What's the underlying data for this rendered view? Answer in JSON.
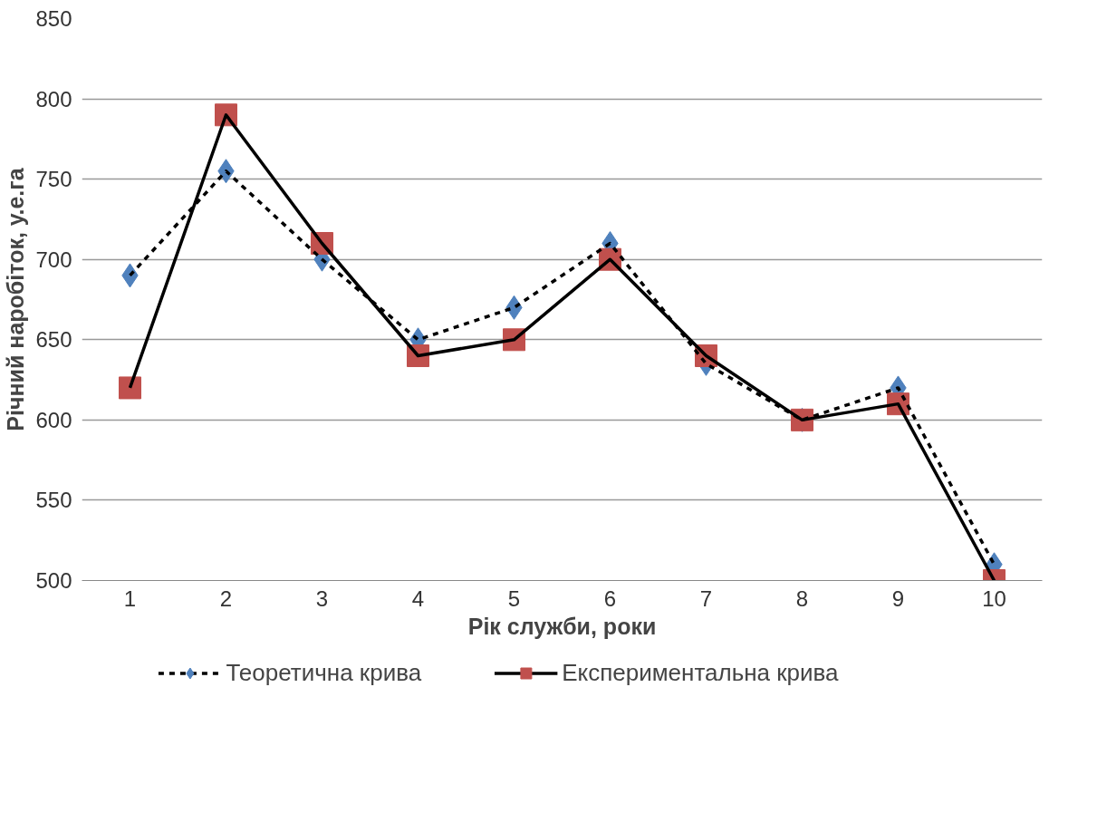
{
  "chart_data": {
    "type": "line",
    "xlabel": "Рік служби, роки",
    "ylabel": "Річний наробіток, у.е.га",
    "categories": [
      "1",
      "2",
      "3",
      "4",
      "5",
      "6",
      "7",
      "8",
      "9",
      "10"
    ],
    "series": [
      {
        "name": "Теоретична крива",
        "color": "#4f81bd",
        "marker": "diamond",
        "line_style": "dashed",
        "values": [
          690,
          755,
          700,
          650,
          670,
          710,
          635,
          600,
          620,
          510
        ]
      },
      {
        "name": "Експериментальна крива",
        "color": "#c0504d",
        "marker": "square",
        "line_style": "solid",
        "values": [
          620,
          790,
          710,
          640,
          650,
          700,
          640,
          600,
          610,
          500
        ]
      }
    ],
    "ylim": [
      500,
      850
    ],
    "yticks": [
      500,
      550,
      600,
      650,
      700,
      750,
      800,
      850
    ],
    "grid": "y",
    "legend": "bottom"
  }
}
